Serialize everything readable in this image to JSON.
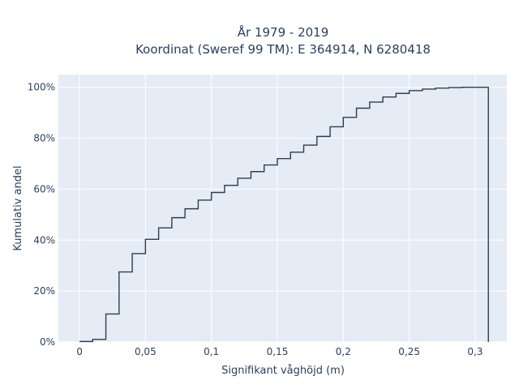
{
  "chart_data": {
    "type": "line",
    "subtype": "cumulative-step-histogram",
    "title": "År 1979 - 2019",
    "subtitle": "Koordinat (Sweref 99 TM): E 364914, N 6280418",
    "xlabel": "Signifikant våghöjd (m)",
    "ylabel": "Kumulativ andel",
    "xlim": [
      -0.016,
      0.324
    ],
    "ylim": [
      0,
      1.05
    ],
    "grid": true,
    "legend": "none",
    "x_ticks": [
      {
        "value": 0,
        "label": "0"
      },
      {
        "value": 0.05,
        "label": "0,05"
      },
      {
        "value": 0.1,
        "label": "0,1"
      },
      {
        "value": 0.15,
        "label": "0,15"
      },
      {
        "value": 0.2,
        "label": "0,2"
      },
      {
        "value": 0.25,
        "label": "0,25"
      },
      {
        "value": 0.3,
        "label": "0,3"
      }
    ],
    "y_ticks": [
      {
        "value": 0,
        "label": "0%"
      },
      {
        "value": 0.2,
        "label": "20%"
      },
      {
        "value": 0.4,
        "label": "40%"
      },
      {
        "value": 0.6,
        "label": "60%"
      },
      {
        "value": 0.8,
        "label": "80%"
      },
      {
        "value": 1.0,
        "label": "100%"
      }
    ],
    "bin_edges": [
      0,
      0.01,
      0.02,
      0.03,
      0.04,
      0.05,
      0.06,
      0.07,
      0.08,
      0.09,
      0.1,
      0.11,
      0.12,
      0.13,
      0.14,
      0.15,
      0.16,
      0.17,
      0.18,
      0.19,
      0.2,
      0.21,
      0.22,
      0.23,
      0.24,
      0.25,
      0.26,
      0.27,
      0.28,
      0.29,
      0.3,
      0.31
    ],
    "values": [
      0.002,
      0.01,
      0.11,
      0.275,
      0.347,
      0.403,
      0.448,
      0.488,
      0.523,
      0.557,
      0.587,
      0.615,
      0.643,
      0.669,
      0.695,
      0.72,
      0.745,
      0.773,
      0.807,
      0.845,
      0.882,
      0.918,
      0.942,
      0.962,
      0.976,
      0.987,
      0.993,
      0.997,
      0.999,
      1.0,
      1.0
    ],
    "colors": {
      "line": "#2a3f4f",
      "plot_bg": "#e5ecf6",
      "grid": "#ffffff",
      "text": "#2a3f5f"
    }
  }
}
